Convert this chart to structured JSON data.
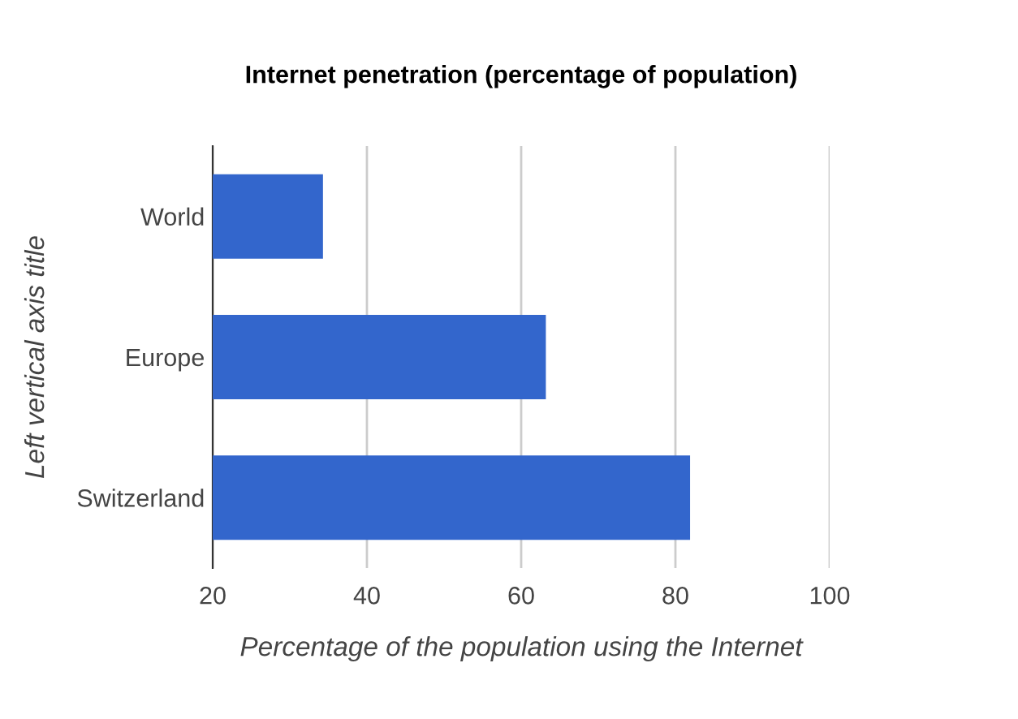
{
  "chart_data": {
    "type": "bar",
    "orientation": "horizontal",
    "title": "Internet penetration (percentage of population)",
    "xlabel": "Percentage of the population using the Internet",
    "ylabel": "Left vertical axis title",
    "categories": [
      "World",
      "Europe",
      "Switzerland"
    ],
    "series": [
      {
        "color": "#3366cc",
        "values": [
          34.3,
          63.2,
          81.9
        ]
      }
    ],
    "xlim": [
      20,
      100
    ],
    "xticks": [
      20,
      40,
      60,
      80,
      100
    ],
    "grid": "x"
  }
}
